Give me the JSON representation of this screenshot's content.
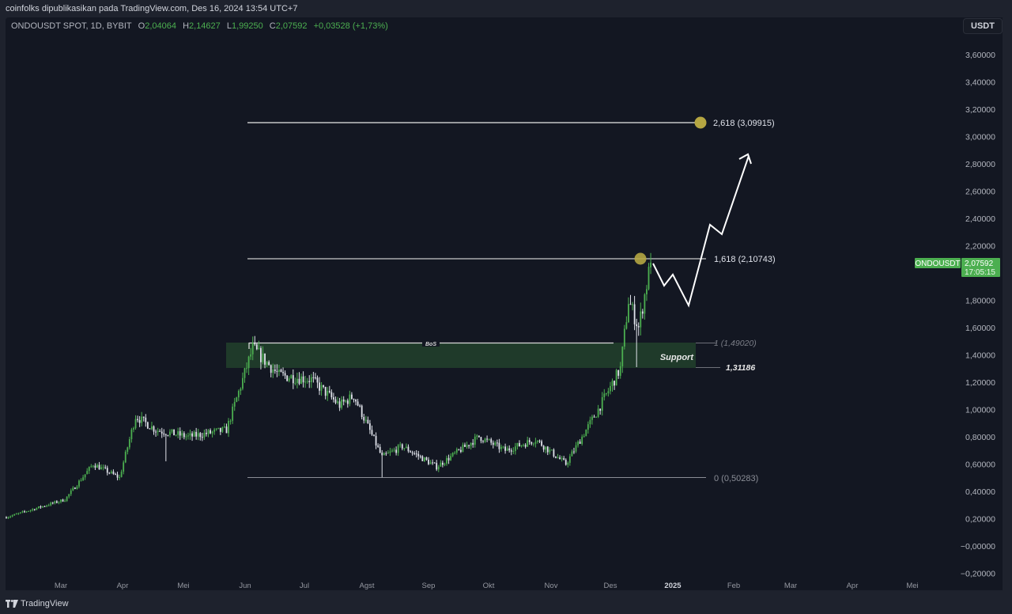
{
  "header": {
    "publish_line": "coinfolks dipublikasikan pada TradingView.com, Des 16, 2024 13:54 UTC+7"
  },
  "legend": {
    "symbol": "ONDOUSDT SPOT, 1D, BYBIT",
    "open_label": "O",
    "open": "2,04064",
    "high_label": "H",
    "high": "2,14627",
    "low_label": "L",
    "low": "1,99250",
    "close_label": "C",
    "close": "2,07592",
    "change": "+0,03528 (+1,73%)"
  },
  "price_scale": {
    "currency_button": "USDT",
    "ticks": [
      "3,60000",
      "3,40000",
      "3,20000",
      "3,00000",
      "2,80000",
      "2,60000",
      "2,40000",
      "2,20000",
      "1,80000",
      "1,60000",
      "1,40000",
      "1,20000",
      "1,00000",
      "0,80000",
      "0,60000",
      "0,40000",
      "0,20000",
      "−0,00000",
      "−0,20000"
    ],
    "symbol_tag": "ONDOUSDT",
    "last_price": "2,07592",
    "countdown": "17:05:15"
  },
  "time_scale": {
    "ticks": [
      "Mar",
      "Apr",
      "Mei",
      "Jun",
      "Jul",
      "Agst",
      "Sep",
      "Okt",
      "Nov",
      "Des",
      "2025",
      "Feb",
      "Mar",
      "Apr",
      "Mei"
    ]
  },
  "annotations": {
    "fib_2618": "2,618 (3,09915)",
    "fib_1618": "1,618 (2,10743)",
    "fib_1": "1 (1,49020)",
    "fib_0": "0 (0,50283)",
    "support_label": "Support",
    "support_low": "1,31186",
    "bos_label": "BoS"
  },
  "footer": {
    "brand": "TradingView"
  },
  "colors": {
    "background": "#131722",
    "up_candle": "#4caf50",
    "down_candle": "#e0e3eb",
    "support_zone": "#1f3a2a",
    "fib_marker": "#b5a642",
    "price_tag": "#4caf50"
  },
  "chart_data": {
    "type": "candlestick",
    "title": "ONDOUSDT SPOT, 1D, BYBIT",
    "xlabel": "",
    "ylabel": "USDT",
    "ylim": [
      -0.25,
      3.75
    ],
    "x_ticks": [
      "Mar",
      "Apr",
      "Mei",
      "Jun",
      "Jul",
      "Agst",
      "Sep",
      "Okt",
      "Nov",
      "Des",
      "2025",
      "Feb",
      "Mar",
      "Apr",
      "Mei"
    ],
    "y_ticks": [
      3.6,
      3.4,
      3.2,
      3.0,
      2.8,
      2.6,
      2.4,
      2.2,
      1.8,
      1.6,
      1.4,
      1.2,
      1.0,
      0.8,
      0.6,
      0.4,
      0.2,
      0.0,
      -0.2
    ],
    "last_ohlc": {
      "open": 2.04064,
      "high": 2.14627,
      "low": 1.9925,
      "close": 2.07592,
      "change": 0.03528,
      "change_pct": 1.73
    },
    "approx_close_path": [
      {
        "date": "2024-02-01",
        "price": 0.21
      },
      {
        "date": "2024-03-01",
        "price": 0.34
      },
      {
        "date": "2024-03-15",
        "price": 0.6
      },
      {
        "date": "2024-03-28",
        "price": 0.5
      },
      {
        "date": "2024-04-05",
        "price": 0.95
      },
      {
        "date": "2024-04-15",
        "price": 0.85
      },
      {
        "date": "2024-05-01",
        "price": 0.8
      },
      {
        "date": "2024-05-20",
        "price": 0.85
      },
      {
        "date": "2024-06-02",
        "price": 1.45
      },
      {
        "date": "2024-06-15",
        "price": 1.25
      },
      {
        "date": "2024-07-01",
        "price": 1.22
      },
      {
        "date": "2024-07-15",
        "price": 1.03
      },
      {
        "date": "2024-07-22",
        "price": 1.1
      },
      {
        "date": "2024-08-05",
        "price": 0.65
      },
      {
        "date": "2024-08-15",
        "price": 0.73
      },
      {
        "date": "2024-09-01",
        "price": 0.58
      },
      {
        "date": "2024-09-22",
        "price": 0.8
      },
      {
        "date": "2024-10-05",
        "price": 0.7
      },
      {
        "date": "2024-10-20",
        "price": 0.78
      },
      {
        "date": "2024-11-04",
        "price": 0.6
      },
      {
        "date": "2024-11-20",
        "price": 1.0
      },
      {
        "date": "2024-12-01",
        "price": 1.3
      },
      {
        "date": "2024-12-05",
        "price": 1.8
      },
      {
        "date": "2024-12-10",
        "price": 1.6
      },
      {
        "date": "2024-12-16",
        "price": 2.07592
      }
    ],
    "horizontal_levels": [
      {
        "label": "2,618",
        "price": 3.09915
      },
      {
        "label": "1,618",
        "price": 2.10743
      },
      {
        "label": "1",
        "price": 1.4902
      },
      {
        "label": "0",
        "price": 0.50283
      }
    ],
    "zones": [
      {
        "label": "Support",
        "top": 1.4902,
        "bottom": 1.31186
      }
    ],
    "projection_path": [
      2.12,
      1.9,
      1.98,
      1.78,
      2.35,
      2.27,
      2.87
    ]
  }
}
